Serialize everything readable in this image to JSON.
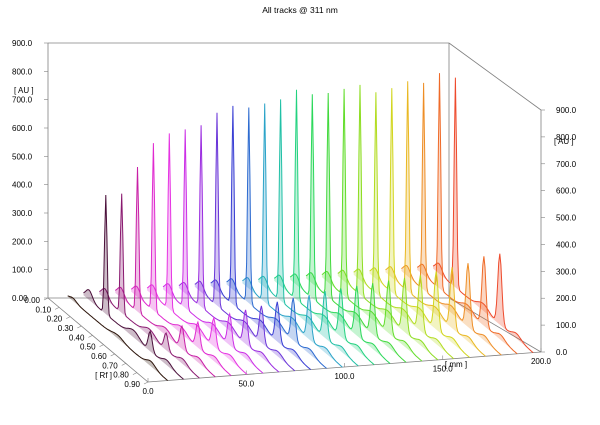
{
  "title": "All tracks @ 311 nm",
  "chart_data": {
    "type": "area",
    "title": "All tracks @ 311 nm",
    "left_axis": {
      "unit": "[ AU ]",
      "ticks": [
        "0.00",
        "100.0",
        "200.0",
        "300.0",
        "400.0",
        "500.0",
        "600.0",
        "700.0",
        "800.0",
        "900.0"
      ],
      "range": [
        0,
        900
      ]
    },
    "right_axis": {
      "unit": "[ AU ]",
      "ticks": [
        "0.0",
        "100.0",
        "200.0",
        "300.0",
        "400.0",
        "500.0",
        "600.0",
        "700.0",
        "800.0",
        "900.0"
      ],
      "range": [
        0,
        900
      ]
    },
    "rf_axis": {
      "unit": "[ Rf ]",
      "ticks": [
        "0.00",
        "0.10",
        "0.20",
        "0.30",
        "0.40",
        "0.50",
        "0.60",
        "0.70",
        "0.80",
        "0.90"
      ],
      "range": [
        0,
        0.9
      ]
    },
    "mm_axis": {
      "unit": "[ mm ]",
      "ticks": [
        "0.0",
        "50.0",
        "100.0",
        "150.0",
        "200.0"
      ],
      "range": [
        0,
        200
      ]
    },
    "main_peak_rf": 0.2,
    "secondary_peak_rf": 0.6,
    "series": [
      {
        "track": 1,
        "main_peak": 0,
        "second_peak": 0,
        "color": "#2a1208"
      },
      {
        "track": 2,
        "main_peak": 420,
        "second_peak": 70,
        "color": "#4a0f3a"
      },
      {
        "track": 3,
        "main_peak": 420,
        "second_peak": 60,
        "color": "#8a1a70"
      },
      {
        "track": 4,
        "main_peak": 510,
        "second_peak": 80,
        "color": "#c81fa6"
      },
      {
        "track": 5,
        "main_peak": 590,
        "second_peak": 90,
        "color": "#e02ad0"
      },
      {
        "track": 6,
        "main_peak": 620,
        "second_peak": 100,
        "color": "#e633e3"
      },
      {
        "track": 7,
        "main_peak": 630,
        "second_peak": 110,
        "color": "#cc2ee6"
      },
      {
        "track": 8,
        "main_peak": 640,
        "second_peak": 120,
        "color": "#9b2de0"
      },
      {
        "track": 9,
        "main_peak": 680,
        "second_peak": 130,
        "color": "#6a35d8"
      },
      {
        "track": 10,
        "main_peak": 700,
        "second_peak": 140,
        "color": "#3a3fd4"
      },
      {
        "track": 11,
        "main_peak": 690,
        "second_peak": 150,
        "color": "#2d6bd0"
      },
      {
        "track": 12,
        "main_peak": 700,
        "second_peak": 155,
        "color": "#2aa3c8"
      },
      {
        "track": 13,
        "main_peak": 710,
        "second_peak": 165,
        "color": "#20c0a6"
      },
      {
        "track": 14,
        "main_peak": 740,
        "second_peak": 170,
        "color": "#22d27f"
      },
      {
        "track": 15,
        "main_peak": 720,
        "second_peak": 175,
        "color": "#2ad85a"
      },
      {
        "track": 16,
        "main_peak": 720,
        "second_peak": 180,
        "color": "#42d93d"
      },
      {
        "track": 17,
        "main_peak": 730,
        "second_peak": 185,
        "color": "#62dd2a"
      },
      {
        "track": 18,
        "main_peak": 740,
        "second_peak": 190,
        "color": "#8ddd22"
      },
      {
        "track": 19,
        "main_peak": 710,
        "second_peak": 195,
        "color": "#b2dc20"
      },
      {
        "track": 20,
        "main_peak": 720,
        "second_peak": 205,
        "color": "#d2d61f"
      },
      {
        "track": 21,
        "main_peak": 740,
        "second_peak": 215,
        "color": "#e9b822"
      },
      {
        "track": 22,
        "main_peak": 730,
        "second_peak": 225,
        "color": "#ee8d25"
      },
      {
        "track": 23,
        "main_peak": 760,
        "second_peak": 245,
        "color": "#ef6a28"
      },
      {
        "track": 24,
        "main_peak": 740,
        "second_peak": 250,
        "color": "#ee4a2c"
      }
    ]
  }
}
